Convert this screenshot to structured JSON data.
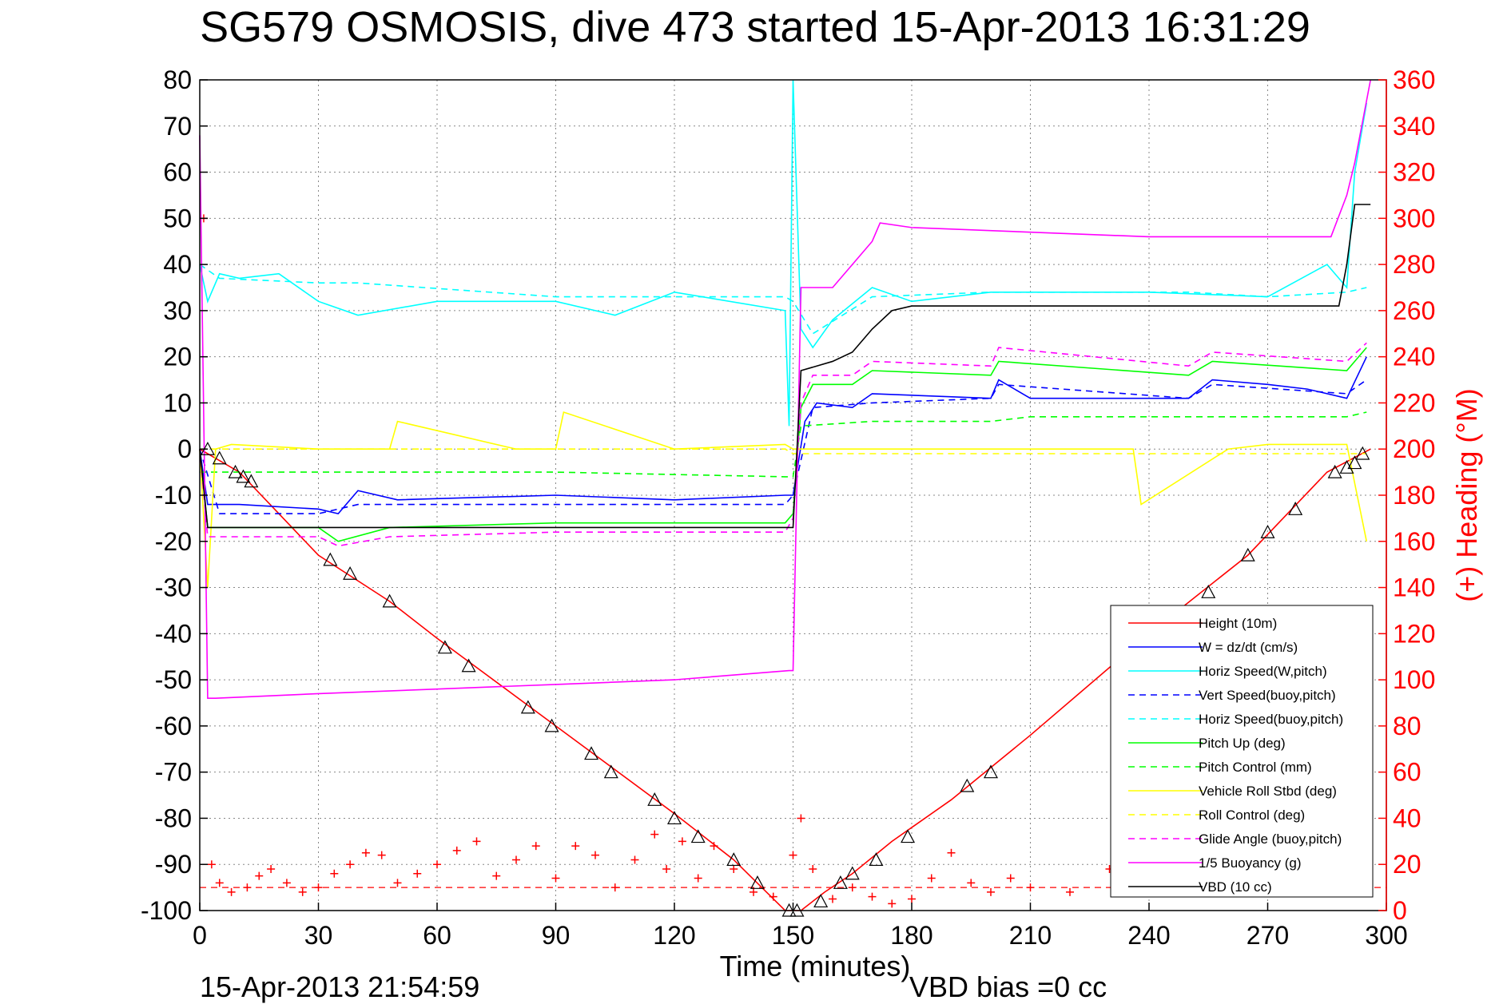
{
  "chart_data": {
    "type": "line",
    "title": "SG579 OSMOSIS, dive 473 started 15-Apr-2013 16:31:29",
    "xlabel": "Time (minutes)",
    "ylabel_right": "(+) Heading (°M)",
    "footer_left": "15-Apr-2013 21:54:59",
    "footer_right": "VBD bias =0 cc",
    "xlim": [
      0,
      300
    ],
    "ylim": [
      -100,
      80
    ],
    "ylim_right": [
      0,
      360
    ],
    "x_ticks": [
      "0",
      "30",
      "60",
      "90",
      "120",
      "150",
      "180",
      "210",
      "240",
      "270",
      "300"
    ],
    "y_ticks": [
      "80",
      "70",
      "60",
      "50",
      "40",
      "30",
      "20",
      "10",
      "0",
      "-10",
      "-20",
      "-30",
      "-40",
      "-50",
      "-60",
      "-70",
      "-80",
      "-90",
      "-100"
    ],
    "y_right_ticks": [
      "360",
      "340",
      "320",
      "300",
      "280",
      "260",
      "240",
      "220",
      "200",
      "180",
      "160",
      "140",
      "120",
      "100",
      "80",
      "60",
      "40",
      "20",
      "0"
    ],
    "grid": true,
    "legend_position": "bottom-right",
    "series": [
      {
        "name": "Height (10m)",
        "color": "#ff0000",
        "style": "solid",
        "x": [
          0,
          10,
          30,
          48,
          60,
          90,
          120,
          135,
          148,
          152,
          158,
          165,
          175,
          190,
          210,
          240,
          265,
          285,
          296
        ],
        "y": [
          0,
          -5,
          -23,
          -33,
          -41,
          -60,
          -79,
          -89,
          -100,
          -100,
          -96,
          -92,
          -85,
          -76,
          -62,
          -40,
          -23,
          -5,
          0
        ]
      },
      {
        "name": "W = dz/dt (cm/s)",
        "color": "#0000ff",
        "style": "solid",
        "x": [
          0,
          2,
          10,
          30,
          35,
          40,
          50,
          90,
          120,
          148,
          150,
          153,
          156,
          165,
          170,
          200,
          202,
          210,
          250,
          256,
          270,
          280,
          290,
          295
        ],
        "y": [
          0,
          -12,
          -12,
          -13,
          -14,
          -9,
          -11,
          -10,
          -11,
          -10,
          -10,
          6,
          10,
          9,
          12,
          11,
          15,
          11,
          11,
          15,
          14,
          13,
          11,
          20
        ]
      },
      {
        "name": "Horiz Speed(W,pitch)",
        "color": "#00ffff",
        "style": "solid",
        "x": [
          0,
          2,
          5,
          10,
          20,
          30,
          40,
          60,
          90,
          105,
          120,
          148,
          149,
          150,
          152,
          155,
          160,
          170,
          180,
          200,
          240,
          270,
          285,
          290,
          292,
          295
        ],
        "y": [
          40,
          32,
          38,
          37,
          38,
          32,
          29,
          32,
          32,
          29,
          34,
          30,
          5,
          80,
          26,
          22,
          28,
          35,
          32,
          34,
          34,
          33,
          40,
          35,
          60,
          75
        ]
      },
      {
        "name": "Vert Speed(buoy,pitch)",
        "color": "#0000ff",
        "style": "dashed",
        "x": [
          0,
          5,
          30,
          40,
          90,
          120,
          148,
          150,
          155,
          170,
          200,
          202,
          250,
          256,
          290,
          295
        ],
        "y": [
          0,
          -14,
          -14,
          -12,
          -12,
          -12,
          -12,
          -10,
          9,
          10,
          11,
          14,
          11,
          14,
          12,
          15
        ]
      },
      {
        "name": "Horiz Speed(buoy,pitch)",
        "color": "#00ffff",
        "style": "dashed",
        "x": [
          0,
          5,
          30,
          40,
          90,
          120,
          148,
          150,
          155,
          170,
          200,
          250,
          270,
          290,
          295
        ],
        "y": [
          40,
          37,
          36,
          36,
          33,
          33,
          33,
          32,
          25,
          33,
          34,
          34,
          33,
          34,
          35
        ]
      },
      {
        "name": "Pitch Up (deg)",
        "color": "#00ff00",
        "style": "solid",
        "x": [
          0,
          2,
          10,
          30,
          35,
          48,
          90,
          120,
          148,
          150,
          152,
          155,
          165,
          170,
          200,
          202,
          250,
          256,
          290,
          295
        ],
        "y": [
          0,
          -17,
          -17,
          -17,
          -20,
          -17,
          -16,
          -16,
          -16,
          -14,
          9,
          14,
          14,
          17,
          16,
          19,
          16,
          19,
          17,
          22
        ]
      },
      {
        "name": "Pitch Control (mm)",
        "color": "#00ff00",
        "style": "dashed",
        "x": [
          0,
          5,
          30,
          90,
          148,
          150,
          152,
          170,
          200,
          210,
          290,
          295
        ],
        "y": [
          -5,
          -5,
          -5,
          -5,
          -6,
          -6,
          5,
          6,
          6,
          7,
          7,
          8
        ]
      },
      {
        "name": "Vehicle Roll Stbd (deg)",
        "color": "#ffff00",
        "style": "solid",
        "x": [
          0,
          2,
          4,
          8,
          30,
          48,
          50,
          80,
          90,
          92,
          120,
          148,
          150,
          200,
          236,
          238,
          260,
          270,
          290,
          295
        ],
        "y": [
          0,
          -30,
          0,
          1,
          0,
          0,
          6,
          0,
          0,
          8,
          0,
          1,
          0,
          0,
          0,
          -12,
          0,
          1,
          1,
          -20
        ]
      },
      {
        "name": "Roll Control (deg)",
        "color": "#ffff00",
        "style": "dashed",
        "x": [
          0,
          5,
          148,
          150,
          295
        ],
        "y": [
          0,
          0,
          0,
          -1,
          -1
        ]
      },
      {
        "name": "Glide Angle (buoy,pitch)",
        "color": "#ff00ff",
        "style": "dashed",
        "x": [
          0,
          2,
          10,
          30,
          35,
          48,
          90,
          120,
          148,
          150,
          152,
          155,
          165,
          170,
          200,
          202,
          250,
          256,
          290,
          295
        ],
        "y": [
          0,
          -19,
          -19,
          -19,
          -21,
          -19,
          -18,
          -18,
          -18,
          -15,
          10,
          16,
          16,
          19,
          18,
          22,
          18,
          21,
          19,
          23
        ]
      },
      {
        "name": "1/5 Buoyancy (g)",
        "color": "#ff00ff",
        "style": "solid",
        "x": [
          0,
          2,
          4,
          30,
          60,
          90,
          120,
          149,
          150,
          152,
          160,
          165,
          170,
          172,
          180,
          210,
          240,
          270,
          286,
          290,
          292,
          296
        ],
        "y": [
          68,
          -54,
          -54,
          -53,
          -52,
          -51,
          -50,
          -48,
          -48,
          35,
          35,
          40,
          45,
          49,
          48,
          47,
          46,
          46,
          46,
          55,
          62,
          80
        ]
      },
      {
        "name": "VBD (10 cc)",
        "color": "#000000",
        "style": "solid",
        "x": [
          0,
          2,
          30,
          60,
          90,
          120,
          150,
          152,
          156,
          160,
          165,
          170,
          175,
          180,
          210,
          240,
          270,
          288,
          290,
          292,
          296
        ],
        "y": [
          0,
          -17,
          -17,
          -17,
          -17,
          -17,
          -17,
          17,
          18,
          19,
          21,
          26,
          30,
          31,
          31,
          31,
          31,
          31,
          40,
          53,
          53
        ]
      }
    ],
    "heading_markers": {
      "color": "#ff0000",
      "marker": "+",
      "x": [
        1,
        3,
        5,
        8,
        12,
        15,
        18,
        22,
        26,
        30,
        34,
        38,
        42,
        46,
        50,
        55,
        60,
        65,
        70,
        75,
        80,
        85,
        90,
        95,
        100,
        105,
        110,
        115,
        118,
        122,
        126,
        130,
        135,
        140,
        145,
        150,
        152,
        155,
        160,
        165,
        170,
        175,
        180,
        185,
        190,
        195,
        200,
        205,
        210,
        220,
        230,
        240,
        250,
        260,
        270,
        275,
        280,
        290,
        295
      ],
      "y": [
        300,
        20,
        12,
        8,
        10,
        15,
        18,
        12,
        8,
        10,
        16,
        20,
        25,
        24,
        12,
        16,
        20,
        26,
        30,
        15,
        22,
        28,
        14,
        28,
        24,
        10,
        22,
        33,
        18,
        30,
        14,
        28,
        18,
        8,
        6,
        24,
        40,
        18,
        5,
        10,
        6,
        3,
        5,
        14,
        25,
        12,
        8,
        14,
        10,
        8,
        18,
        24,
        28,
        20,
        30,
        18,
        14,
        8,
        12
      ]
    },
    "heading_reference": {
      "color": "#ff0000",
      "style": "dashed",
      "value": 10
    },
    "depth_triangles": {
      "color": "#000000",
      "x": [
        2,
        5,
        9,
        11,
        13,
        33,
        38,
        48,
        62,
        68,
        83,
        89,
        99,
        104,
        115,
        120,
        126,
        135,
        141,
        149,
        151,
        157,
        162,
        165,
        171,
        179,
        194,
        200,
        255,
        265,
        270,
        277,
        287,
        290,
        292,
        294
      ],
      "y": [
        0,
        -2,
        -5,
        -6,
        -7,
        -24,
        -27,
        -33,
        -43,
        -47,
        -56,
        -60,
        -66,
        -70,
        -76,
        -80,
        -84,
        -89,
        -94,
        -100,
        -100,
        -98,
        -94,
        -92,
        -89,
        -84,
        -73,
        -70,
        -31,
        -23,
        -18,
        -13,
        -5,
        -4,
        -3,
        -1
      ]
    }
  },
  "legend": {
    "items": [
      {
        "label": "Height (10m)",
        "color": "#ff0000",
        "dash": "none"
      },
      {
        "label": "W = dz/dt (cm/s)",
        "color": "#0000ff",
        "dash": "none"
      },
      {
        "label": "Horiz Speed(W,pitch)",
        "color": "#00ffff",
        "dash": "none"
      },
      {
        "label": "Vert Speed(buoy,pitch)",
        "color": "#0000ff",
        "dash": "8,6"
      },
      {
        "label": "Horiz Speed(buoy,pitch)",
        "color": "#00ffff",
        "dash": "8,6"
      },
      {
        "label": "Pitch Up (deg)",
        "color": "#00ff00",
        "dash": "none"
      },
      {
        "label": "Pitch Control (mm)",
        "color": "#00ff00",
        "dash": "8,6"
      },
      {
        "label": "Vehicle Roll Stbd (deg)",
        "color": "#ffff00",
        "dash": "none"
      },
      {
        "label": "Roll Control (deg)",
        "color": "#ffff00",
        "dash": "8,6"
      },
      {
        "label": "Glide Angle (buoy,pitch)",
        "color": "#ff00ff",
        "dash": "8,6"
      },
      {
        "label": "1/5 Buoyancy (g)",
        "color": "#ff00ff",
        "dash": "none"
      },
      {
        "label": "VBD (10 cc)",
        "color": "#000000",
        "dash": "none"
      }
    ]
  }
}
